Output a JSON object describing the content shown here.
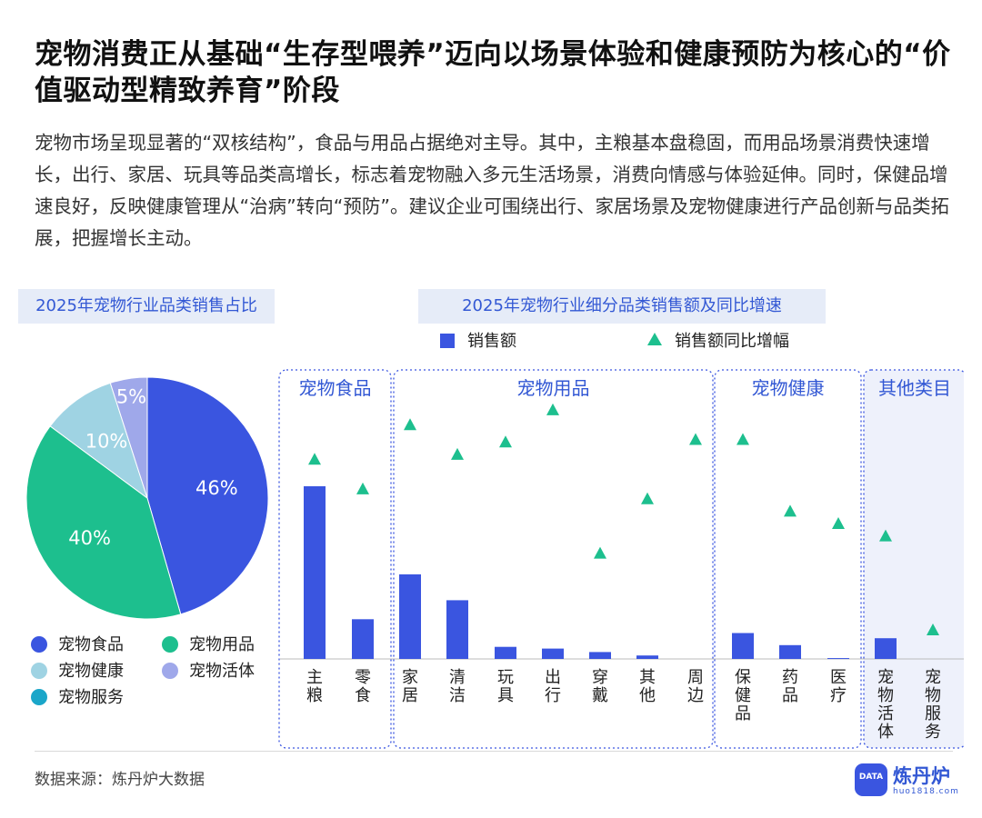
{
  "title": "宠物消费正从基础“生存型喂养”迈向以场景体验和健康预防为核心的“价值驱动型精致养育”阶段",
  "description": "宠物市场呈现显著的“双核结构”，食品与用品占据绝对主导。其中，主粮基本盘稳固，而用品场景消费快速增长，出行、家居、玩具等品类高增长，标志着宠物融入多元生活场景，消费向情感与体验延伸。同时，保健品增速良好，反映健康管理从“治病”转向“预防”。建议企业可围绕出行、家居场景及宠物健康进行产品创新与品类拓展，把握增长主动。",
  "source": "数据来源：炼丹炉大数据",
  "logo": {
    "name": "炼丹炉",
    "sub": "huo1818.com",
    "badge": "DATA"
  },
  "colors": {
    "accent": "#3a55e0",
    "green": "#1dbf8e",
    "light_blue": "#9fd3e3",
    "lavender": "#9fa8ea",
    "teal": "#1aa6c9"
  },
  "chart_data": [
    {
      "type": "pie",
      "title": "2025年宠物行业品类销售占比",
      "slices": [
        {
          "label": "宠物食品",
          "value": 46,
          "display": "46%",
          "color": "#3a55e0"
        },
        {
          "label": "宠物用品",
          "value": 40,
          "display": "40%",
          "color": "#1dbf8e"
        },
        {
          "label": "宠物健康",
          "value": 10,
          "display": "10%",
          "color": "#9fd3e3"
        },
        {
          "label": "宠物活体",
          "value": 5,
          "display": "5%",
          "color": "#9fa8ea"
        },
        {
          "label": "宠物服务",
          "value": 0,
          "display": "",
          "color": "#1aa6c9"
        }
      ],
      "legend": [
        "宠物食品",
        "宠物用品",
        "宠物健康",
        "宠物活体",
        "宠物服务"
      ],
      "legend_placement": "bottom"
    },
    {
      "type": "bar",
      "title": "2025年宠物行业细分品类销售额及同比增速",
      "legend": [
        "销售额",
        "销售额同比增幅"
      ],
      "legend_placement": "top",
      "groups": [
        {
          "name": "宠物食品",
          "categories": [
            "主粮",
            "零食"
          ]
        },
        {
          "name": "宠物用品",
          "categories": [
            "家居",
            "清洁",
            "玩具",
            "出行",
            "穿戴",
            "其他",
            "周边"
          ]
        },
        {
          "name": "宠物健康",
          "categories": [
            "保健品",
            "药品",
            "医疗"
          ]
        },
        {
          "name": "其他类目",
          "categories": [
            "宠物活体",
            "宠物服务"
          ]
        }
      ],
      "categories": [
        "主粮",
        "零食",
        "家居",
        "清洁",
        "玩具",
        "出行",
        "穿戴",
        "其他",
        "周边",
        "保健品",
        "药品",
        "医疗",
        "宠物活体",
        "宠物服务"
      ],
      "series": [
        {
          "name": "销售额",
          "marker": "bar",
          "values": [
            100,
            23,
            49,
            34,
            7,
            6,
            4,
            2,
            0,
            15,
            8,
            0.5,
            12,
            0
          ]
        },
        {
          "name": "销售额同比增幅",
          "marker": "triangle",
          "values": [
            76,
            64,
            90,
            78,
            83,
            96,
            38,
            60,
            84,
            84,
            55,
            50,
            45,
            7
          ]
        }
      ],
      "y_axis_shown": false
    }
  ]
}
